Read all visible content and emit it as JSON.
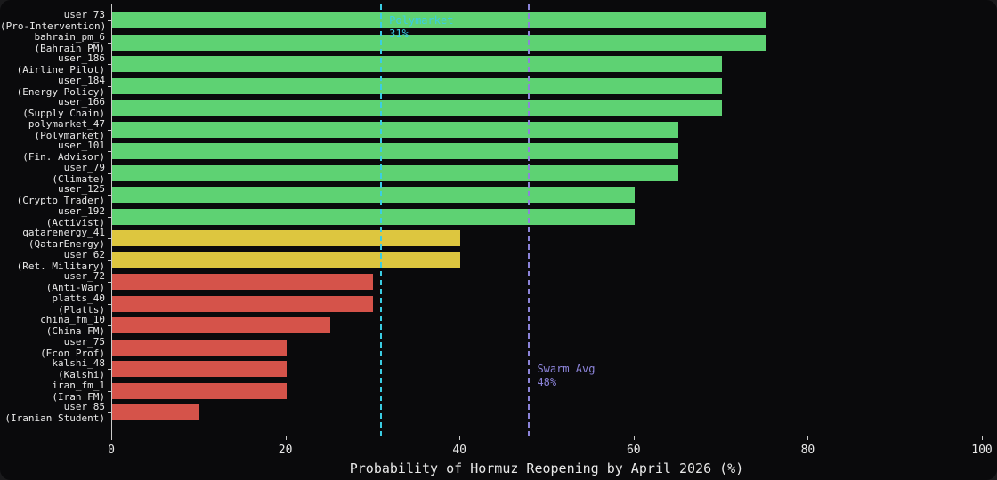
{
  "chart_data": {
    "type": "bar",
    "orientation": "horizontal",
    "xlabel": "Probability of Hormuz Reopening by April 2026 (%)",
    "xlim": [
      0,
      100
    ],
    "xticks": [
      0,
      20,
      40,
      60,
      80,
      100
    ],
    "grid": false,
    "background": "#0a0a0c",
    "colors": {
      "green": "#5ed273",
      "yellow": "#ddc63f",
      "red": "#d5534a"
    },
    "bars": [
      {
        "user": "user_73",
        "role": "(Pro-Intervention)",
        "value": 75,
        "color": "green"
      },
      {
        "user": "bahrain_pm_6",
        "role": "(Bahrain PM)",
        "value": 75,
        "color": "green"
      },
      {
        "user": "user_186",
        "role": "(Airline Pilot)",
        "value": 70,
        "color": "green"
      },
      {
        "user": "user_184",
        "role": "(Energy Policy)",
        "value": 70,
        "color": "green"
      },
      {
        "user": "user_166",
        "role": "(Supply Chain)",
        "value": 70,
        "color": "green"
      },
      {
        "user": "polymarket_47",
        "role": "(Polymarket)",
        "value": 65,
        "color": "green"
      },
      {
        "user": "user_101",
        "role": "(Fin. Advisor)",
        "value": 65,
        "color": "green"
      },
      {
        "user": "user_79",
        "role": "(Climate)",
        "value": 65,
        "color": "green"
      },
      {
        "user": "user_125",
        "role": "(Crypto Trader)",
        "value": 60,
        "color": "green"
      },
      {
        "user": "user_192",
        "role": "(Activist)",
        "value": 60,
        "color": "green"
      },
      {
        "user": "qatarenergy_41",
        "role": "(QatarEnergy)",
        "value": 40,
        "color": "yellow"
      },
      {
        "user": "user_62",
        "role": "(Ret. Military)",
        "value": 40,
        "color": "yellow"
      },
      {
        "user": "user_72",
        "role": "(Anti-War)",
        "value": 30,
        "color": "red"
      },
      {
        "user": "platts_40",
        "role": "(Platts)",
        "value": 30,
        "color": "red"
      },
      {
        "user": "china_fm_10",
        "role": "(China FM)",
        "value": 25,
        "color": "red"
      },
      {
        "user": "user_75",
        "role": "(Econ Prof)",
        "value": 20,
        "color": "red"
      },
      {
        "user": "kalshi_48",
        "role": "(Kalshi)",
        "value": 20,
        "color": "red"
      },
      {
        "user": "iran_fm_1",
        "role": "(Iran FM)",
        "value": 20,
        "color": "red"
      },
      {
        "user": "user_85",
        "role": "(Iranian Student)",
        "value": 10,
        "color": "red"
      }
    ],
    "reference_lines": [
      {
        "label": "Polymarket",
        "value_label": "31%",
        "value": 31,
        "color": "#3bcde4",
        "style": "dashed",
        "label_anchor": "top"
      },
      {
        "label": "Swarm Avg",
        "value_label": "48%",
        "value": 48,
        "color": "#8c84da",
        "style": "dashed",
        "label_anchor": "lower-middle"
      }
    ]
  }
}
